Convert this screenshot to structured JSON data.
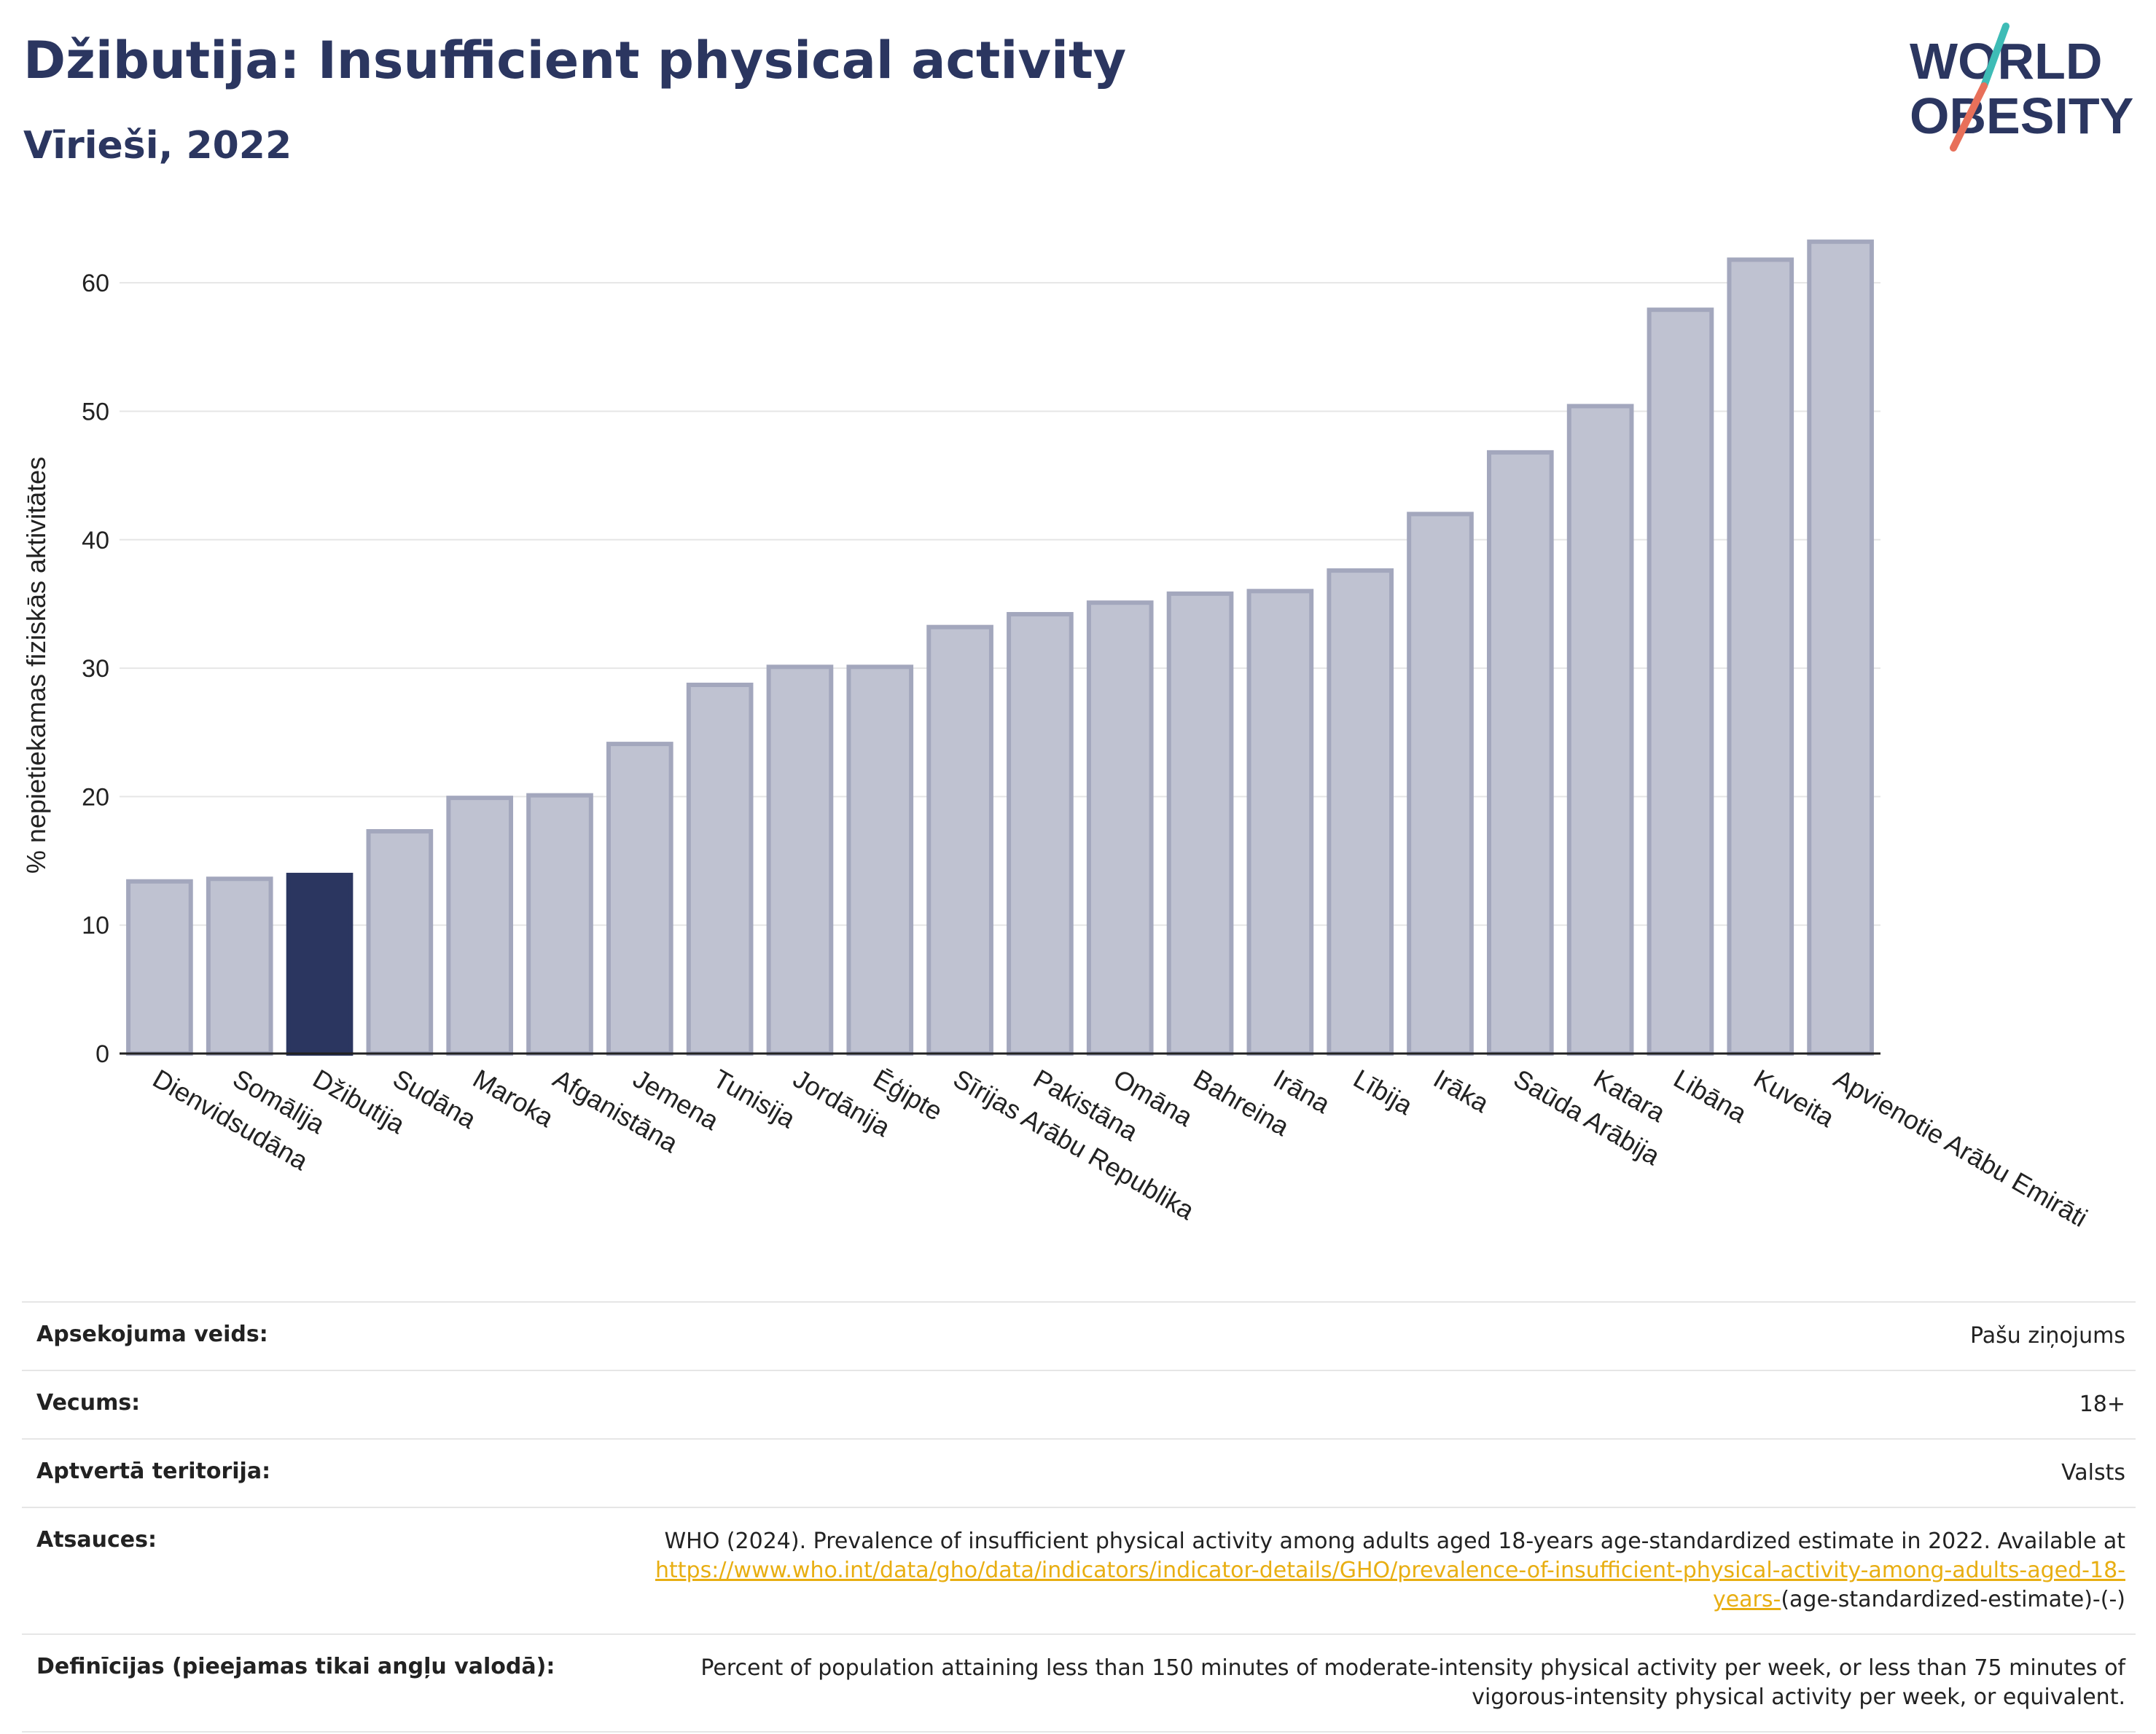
{
  "header": {
    "title": "Džibutija: Insufficient physical activity",
    "subtitle": "Vīrieši, 2022"
  },
  "logo": {
    "line1": "WORLD",
    "line2": "OBESITY"
  },
  "colors": {
    "bar_default_fill": "#bfc2d1",
    "bar_default_stroke": "#a3a7bd",
    "bar_highlight": "#2b3660",
    "text_dark": "#2b3660",
    "grid": "#e6e6e6",
    "link": "#e8ae12",
    "logo_teal": "#3ebcb6",
    "logo_coral": "#e8705a"
  },
  "chart_data": {
    "type": "bar",
    "ylabel": "% nepietiekamas fiziskās aktivitātes",
    "ylim": [
      0,
      65
    ],
    "yticks": [
      0,
      10,
      20,
      30,
      40,
      50,
      60
    ],
    "grid": true,
    "highlight": "Džibutija",
    "categories": [
      "Dienvidsudāna",
      "Somālija",
      "Džibutija",
      "Sudāna",
      "Maroka",
      "Afganistāna",
      "Jemena",
      "Tunisija",
      "Jordānija",
      "Ēģipte",
      "Sīrijas Arābu Republika",
      "Pakistāna",
      "Omāna",
      "Bahreina",
      "Irāna",
      "Lībija",
      "Irāka",
      "Saūda Arābija",
      "Katara",
      "Libāna",
      "Kuveita",
      "Apvienotie Arābu Emirāti"
    ],
    "values": [
      13.4,
      13.6,
      13.9,
      17.3,
      19.9,
      20.1,
      24.1,
      28.7,
      30.1,
      30.1,
      33.2,
      34.2,
      35.1,
      35.8,
      36.0,
      37.6,
      42.0,
      46.8,
      50.4,
      57.9,
      61.8,
      63.2
    ]
  },
  "info": {
    "survey_type": {
      "label": "Apsekojuma veids:",
      "value": "Pašu ziņojums"
    },
    "age": {
      "label": "Vecums:",
      "value": "18+"
    },
    "coverage": {
      "label": "Aptvertā teritorija:",
      "value": "Valsts"
    },
    "references": {
      "label": "Atsauces:",
      "text": "WHO (2024). Prevalence of insufficient physical activity among adults aged 18-years age-standardized estimate in 2022. Available at",
      "link": "https://www.who.int/data/gho/data/indicators/indicator-details/GHO/prevalence-of-insufficient-physical-activity-among-adults-aged-18-years-",
      "tail": "(age-standardized-estimate)-(-)"
    },
    "definitions": {
      "label": "Definīcijas (pieejamas tikai angļu valodā):",
      "value": "Percent of population attaining less than 150 minutes of moderate-intensity physical activity per week, or less than 75 minutes of vigorous-intensity physical activity per week, or equivalent."
    }
  }
}
